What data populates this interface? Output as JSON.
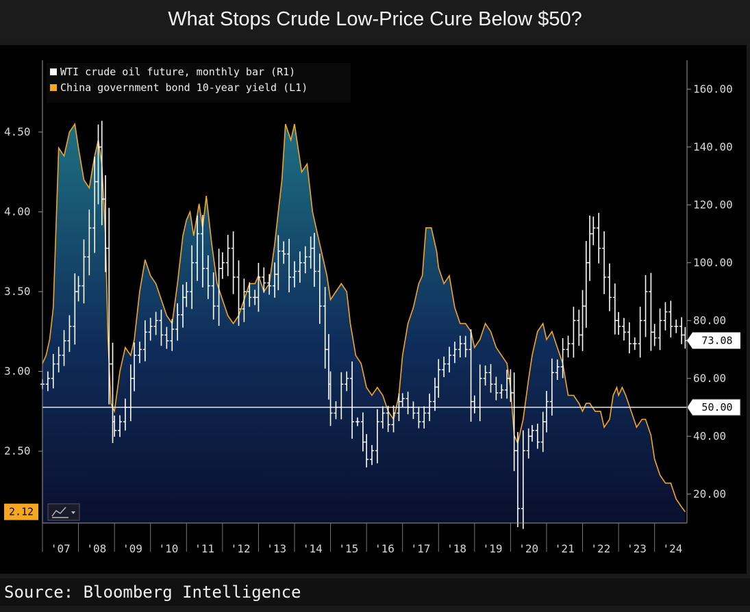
{
  "title": "What Stops Crude Low-Price Cure Below $50?",
  "source": "Source: Bloomberg Intelligence",
  "colors": {
    "yield": "#f5a623",
    "oil": "#ffffff",
    "fill_top": "#1e6f82",
    "fill_bottom": "#0a0f2e",
    "background": "#000000"
  },
  "icons": {
    "chart_type_button": "line-chart-icon",
    "dropdown": "chevron-down-icon"
  },
  "chart_data": {
    "type": "line",
    "title": "What Stops Crude Low-Price Cure Below $50?",
    "legend_placement": "top-left",
    "legend": [
      {
        "label": "WTI crude oil future, monthly bar (R1)",
        "color": "#ffffff"
      },
      {
        "label": "China government bond 10-year yield (L1)",
        "color": "#f5a623"
      }
    ],
    "x_tick_labels": [
      "'07",
      "'08",
      "'09",
      "'10",
      "'11",
      "'12",
      "'13",
      "'14",
      "'15",
      "'16",
      "'17",
      "'18",
      "'19",
      "'20",
      "'21",
      "'22",
      "'23",
      "'24"
    ],
    "xlim": [
      2007.0,
      2024.9
    ],
    "y_left": {
      "ticks": [
        "2.50",
        "3.00",
        "3.50",
        "4.00",
        "4.50"
      ],
      "ylim": [
        2.05,
        4.95
      ]
    },
    "y_right": {
      "ticks": [
        "20.00",
        "40.00",
        "60.00",
        "80.00",
        "100.00",
        "120.00",
        "140.00",
        "160.00"
      ],
      "ylim": [
        10,
        170
      ]
    },
    "reference_line": {
      "axis": "right",
      "value": 50,
      "label": "50.00"
    },
    "last_value_labels": {
      "left": "2.12",
      "right": "73.08"
    },
    "series": [
      {
        "name": "China government bond 10-year yield (L1)",
        "axis": "left",
        "style": "area",
        "points": [
          [
            2007.0,
            3.05
          ],
          [
            2007.1,
            3.1
          ],
          [
            2007.2,
            3.2
          ],
          [
            2007.3,
            3.4
          ],
          [
            2007.45,
            4.4
          ],
          [
            2007.6,
            4.35
          ],
          [
            2007.75,
            4.5
          ],
          [
            2007.9,
            4.55
          ],
          [
            2008.0,
            4.4
          ],
          [
            2008.15,
            4.2
          ],
          [
            2008.3,
            4.15
          ],
          [
            2008.45,
            4.35
          ],
          [
            2008.55,
            4.45
          ],
          [
            2008.65,
            4.3
          ],
          [
            2008.75,
            3.85
          ],
          [
            2008.82,
            3.2
          ],
          [
            2008.9,
            2.8
          ],
          [
            2009.0,
            2.75
          ],
          [
            2009.15,
            3.0
          ],
          [
            2009.3,
            3.15
          ],
          [
            2009.45,
            3.1
          ],
          [
            2009.55,
            3.2
          ],
          [
            2009.7,
            3.5
          ],
          [
            2009.85,
            3.7
          ],
          [
            2010.0,
            3.6
          ],
          [
            2010.15,
            3.55
          ],
          [
            2010.3,
            3.45
          ],
          [
            2010.45,
            3.35
          ],
          [
            2010.6,
            3.3
          ],
          [
            2010.75,
            3.55
          ],
          [
            2010.9,
            3.85
          ],
          [
            2011.0,
            3.95
          ],
          [
            2011.1,
            4.0
          ],
          [
            2011.2,
            3.85
          ],
          [
            2011.35,
            4.05
          ],
          [
            2011.45,
            3.9
          ],
          [
            2011.55,
            4.1
          ],
          [
            2011.7,
            3.8
          ],
          [
            2011.85,
            3.55
          ],
          [
            2012.0,
            3.45
          ],
          [
            2012.15,
            3.35
          ],
          [
            2012.3,
            3.3
          ],
          [
            2012.45,
            3.35
          ],
          [
            2012.6,
            3.45
          ],
          [
            2012.75,
            3.55
          ],
          [
            2012.9,
            3.55
          ],
          [
            2013.0,
            3.6
          ],
          [
            2013.15,
            3.5
          ],
          [
            2013.3,
            3.55
          ],
          [
            2013.45,
            3.8
          ],
          [
            2013.55,
            4.0
          ],
          [
            2013.65,
            4.2
          ],
          [
            2013.75,
            4.55
          ],
          [
            2013.9,
            4.45
          ],
          [
            2014.0,
            4.55
          ],
          [
            2014.1,
            4.4
          ],
          [
            2014.2,
            4.25
          ],
          [
            2014.35,
            4.3
          ],
          [
            2014.5,
            4.0
          ],
          [
            2014.6,
            3.9
          ],
          [
            2014.75,
            3.75
          ],
          [
            2014.9,
            3.6
          ],
          [
            2015.0,
            3.45
          ],
          [
            2015.15,
            3.5
          ],
          [
            2015.3,
            3.55
          ],
          [
            2015.45,
            3.5
          ],
          [
            2015.55,
            3.3
          ],
          [
            2015.7,
            3.1
          ],
          [
            2015.85,
            3.05
          ],
          [
            2016.0,
            2.9
          ],
          [
            2016.15,
            2.85
          ],
          [
            2016.3,
            2.9
          ],
          [
            2016.45,
            2.85
          ],
          [
            2016.6,
            2.75
          ],
          [
            2016.75,
            2.7
          ],
          [
            2016.9,
            2.85
          ],
          [
            2017.0,
            3.1
          ],
          [
            2017.15,
            3.3
          ],
          [
            2017.3,
            3.4
          ],
          [
            2017.45,
            3.55
          ],
          [
            2017.55,
            3.6
          ],
          [
            2017.65,
            3.9
          ],
          [
            2017.8,
            3.9
          ],
          [
            2017.95,
            3.75
          ],
          [
            2018.0,
            3.65
          ],
          [
            2018.15,
            3.55
          ],
          [
            2018.3,
            3.6
          ],
          [
            2018.45,
            3.4
          ],
          [
            2018.6,
            3.3
          ],
          [
            2018.75,
            3.3
          ],
          [
            2018.9,
            3.25
          ],
          [
            2019.0,
            3.15
          ],
          [
            2019.15,
            3.2
          ],
          [
            2019.3,
            3.3
          ],
          [
            2019.45,
            3.25
          ],
          [
            2019.6,
            3.15
          ],
          [
            2019.75,
            3.1
          ],
          [
            2019.9,
            3.05
          ],
          [
            2020.0,
            2.9
          ],
          [
            2020.1,
            2.6
          ],
          [
            2020.2,
            2.55
          ],
          [
            2020.35,
            2.7
          ],
          [
            2020.5,
            2.95
          ],
          [
            2020.6,
            3.1
          ],
          [
            2020.75,
            3.25
          ],
          [
            2020.9,
            3.3
          ],
          [
            2021.0,
            3.2
          ],
          [
            2021.15,
            3.25
          ],
          [
            2021.3,
            3.15
          ],
          [
            2021.45,
            3.05
          ],
          [
            2021.6,
            2.85
          ],
          [
            2021.75,
            2.85
          ],
          [
            2021.9,
            2.8
          ],
          [
            2022.0,
            2.75
          ],
          [
            2022.1,
            2.8
          ],
          [
            2022.2,
            2.8
          ],
          [
            2022.35,
            2.75
          ],
          [
            2022.5,
            2.75
          ],
          [
            2022.6,
            2.65
          ],
          [
            2022.75,
            2.7
          ],
          [
            2022.85,
            2.85
          ],
          [
            2022.95,
            2.9
          ],
          [
            2023.0,
            2.85
          ],
          [
            2023.1,
            2.9
          ],
          [
            2023.2,
            2.85
          ],
          [
            2023.35,
            2.75
          ],
          [
            2023.5,
            2.65
          ],
          [
            2023.65,
            2.7
          ],
          [
            2023.75,
            2.7
          ],
          [
            2023.9,
            2.6
          ],
          [
            2024.0,
            2.45
          ],
          [
            2024.15,
            2.35
          ],
          [
            2024.3,
            2.3
          ],
          [
            2024.45,
            2.3
          ],
          [
            2024.6,
            2.2
          ],
          [
            2024.75,
            2.15
          ],
          [
            2024.85,
            2.12
          ]
        ]
      },
      {
        "name": "WTI crude oil future, monthly bar (R1)",
        "axis": "right",
        "style": "bar",
        "points": [
          [
            2007.0,
            58
          ],
          [
            2007.15,
            60
          ],
          [
            2007.3,
            65
          ],
          [
            2007.45,
            68
          ],
          [
            2007.6,
            73
          ],
          [
            2007.75,
            78
          ],
          [
            2007.9,
            90
          ],
          [
            2008.0,
            92
          ],
          [
            2008.15,
            102
          ],
          [
            2008.3,
            112
          ],
          [
            2008.45,
            128
          ],
          [
            2008.55,
            140
          ],
          [
            2008.65,
            122
          ],
          [
            2008.75,
            105
          ],
          [
            2008.85,
            65
          ],
          [
            2008.95,
            45
          ],
          [
            2009.0,
            42
          ],
          [
            2009.15,
            45
          ],
          [
            2009.3,
            50
          ],
          [
            2009.45,
            60
          ],
          [
            2009.55,
            68
          ],
          [
            2009.7,
            70
          ],
          [
            2009.85,
            76
          ],
          [
            2010.0,
            78
          ],
          [
            2010.15,
            80
          ],
          [
            2010.3,
            75
          ],
          [
            2010.45,
            73
          ],
          [
            2010.6,
            77
          ],
          [
            2010.75,
            82
          ],
          [
            2010.9,
            88
          ],
          [
            2011.0,
            90
          ],
          [
            2011.15,
            100
          ],
          [
            2011.3,
            110
          ],
          [
            2011.45,
            98
          ],
          [
            2011.6,
            92
          ],
          [
            2011.75,
            85
          ],
          [
            2011.9,
            98
          ],
          [
            2012.0,
            100
          ],
          [
            2012.15,
            105
          ],
          [
            2012.3,
            95
          ],
          [
            2012.45,
            84
          ],
          [
            2012.6,
            90
          ],
          [
            2012.75,
            88
          ],
          [
            2012.9,
            88
          ],
          [
            2013.0,
            95
          ],
          [
            2013.15,
            93
          ],
          [
            2013.3,
            92
          ],
          [
            2013.45,
            96
          ],
          [
            2013.55,
            104
          ],
          [
            2013.7,
            103
          ],
          [
            2013.85,
            95
          ],
          [
            2014.0,
            97
          ],
          [
            2014.15,
            100
          ],
          [
            2014.3,
            102
          ],
          [
            2014.45,
            105
          ],
          [
            2014.55,
            97
          ],
          [
            2014.7,
            85
          ],
          [
            2014.85,
            70
          ],
          [
            2014.95,
            58
          ],
          [
            2015.0,
            48
          ],
          [
            2015.15,
            50
          ],
          [
            2015.3,
            58
          ],
          [
            2015.45,
            60
          ],
          [
            2015.6,
            45
          ],
          [
            2015.75,
            45
          ],
          [
            2015.9,
            38
          ],
          [
            2016.0,
            32
          ],
          [
            2016.15,
            35
          ],
          [
            2016.3,
            45
          ],
          [
            2016.45,
            48
          ],
          [
            2016.6,
            44
          ],
          [
            2016.75,
            48
          ],
          [
            2016.9,
            52
          ],
          [
            2017.0,
            53
          ],
          [
            2017.15,
            50
          ],
          [
            2017.3,
            48
          ],
          [
            2017.45,
            45
          ],
          [
            2017.6,
            48
          ],
          [
            2017.75,
            52
          ],
          [
            2017.9,
            57
          ],
          [
            2018.0,
            63
          ],
          [
            2018.15,
            65
          ],
          [
            2018.3,
            68
          ],
          [
            2018.45,
            70
          ],
          [
            2018.6,
            72
          ],
          [
            2018.75,
            70
          ],
          [
            2018.9,
            52
          ],
          [
            2019.0,
            50
          ],
          [
            2019.15,
            60
          ],
          [
            2019.3,
            62
          ],
          [
            2019.45,
            58
          ],
          [
            2019.6,
            55
          ],
          [
            2019.75,
            56
          ],
          [
            2019.9,
            60
          ],
          [
            2020.0,
            55
          ],
          [
            2020.1,
            35
          ],
          [
            2020.2,
            15
          ],
          [
            2020.35,
            35
          ],
          [
            2020.5,
            40
          ],
          [
            2020.6,
            42
          ],
          [
            2020.75,
            38
          ],
          [
            2020.9,
            45
          ],
          [
            2021.0,
            52
          ],
          [
            2021.15,
            62
          ],
          [
            2021.3,
            64
          ],
          [
            2021.45,
            70
          ],
          [
            2021.6,
            72
          ],
          [
            2021.75,
            80
          ],
          [
            2021.9,
            75
          ],
          [
            2022.0,
            85
          ],
          [
            2022.1,
            100
          ],
          [
            2022.2,
            110
          ],
          [
            2022.3,
            112
          ],
          [
            2022.45,
            105
          ],
          [
            2022.6,
            95
          ],
          [
            2022.75,
            88
          ],
          [
            2022.9,
            80
          ],
          [
            2023.0,
            78
          ],
          [
            2023.15,
            76
          ],
          [
            2023.3,
            72
          ],
          [
            2023.45,
            72
          ],
          [
            2023.6,
            80
          ],
          [
            2023.75,
            90
          ],
          [
            2023.9,
            76
          ],
          [
            2024.0,
            74
          ],
          [
            2024.15,
            80
          ],
          [
            2024.3,
            83
          ],
          [
            2024.45,
            78
          ],
          [
            2024.6,
            78
          ],
          [
            2024.75,
            75
          ],
          [
            2024.85,
            73.08
          ]
        ]
      }
    ]
  }
}
